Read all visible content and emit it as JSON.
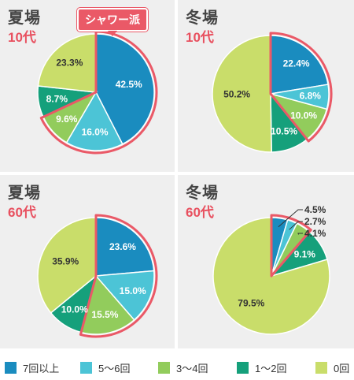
{
  "colors": {
    "series": [
      "#1a8cbf",
      "#4cc4d6",
      "#92cc5c",
      "#15a07b",
      "#c9dd6a"
    ],
    "highlight": "#ea5967"
  },
  "legend": [
    "7回以上",
    "5〜6回",
    "3〜4回",
    "1〜2回",
    "0回"
  ],
  "callout": "シャワー派",
  "chart_data": [
    {
      "type": "pie",
      "title": "夏場",
      "subtitle": "10代",
      "categories": [
        "7回以上",
        "5〜6回",
        "3〜4回",
        "1〜2回",
        "0回"
      ],
      "values": [
        42.5,
        16.0,
        9.6,
        8.7,
        23.3
      ],
      "labels": [
        "42.5%",
        "16.0%",
        "9.6%",
        "8.7%",
        "23.3%"
      ],
      "highlight_slices": [
        0,
        1,
        2
      ]
    },
    {
      "type": "pie",
      "title": "冬場",
      "subtitle": "10代",
      "categories": [
        "7回以上",
        "5〜6回",
        "3〜4回",
        "1〜2回",
        "0回"
      ],
      "values": [
        22.4,
        6.8,
        10.0,
        10.5,
        50.2
      ],
      "labels": [
        "22.4%",
        "6.8%",
        "10.0%",
        "10.5%",
        "50.2%"
      ],
      "highlight_slices": [
        0,
        1,
        2
      ]
    },
    {
      "type": "pie",
      "title": "夏場",
      "subtitle": "60代",
      "categories": [
        "7回以上",
        "5〜6回",
        "3〜4回",
        "1〜2回",
        "0回"
      ],
      "values": [
        23.6,
        15.0,
        15.5,
        10.0,
        35.9
      ],
      "labels": [
        "23.6%",
        "15.0%",
        "15.5%",
        "10.0%",
        "35.9%"
      ],
      "highlight_slices": [
        0,
        1,
        2
      ]
    },
    {
      "type": "pie",
      "title": "冬場",
      "subtitle": "60代",
      "categories": [
        "7回以上",
        "5〜6回",
        "3〜4回",
        "1〜2回",
        "0回"
      ],
      "values": [
        4.5,
        2.7,
        4.1,
        9.1,
        79.5
      ],
      "labels": [
        "4.5%",
        "2.7%",
        "4.1%",
        "9.1%",
        "79.5%"
      ],
      "highlight_slices": [
        0,
        1,
        2
      ]
    }
  ]
}
